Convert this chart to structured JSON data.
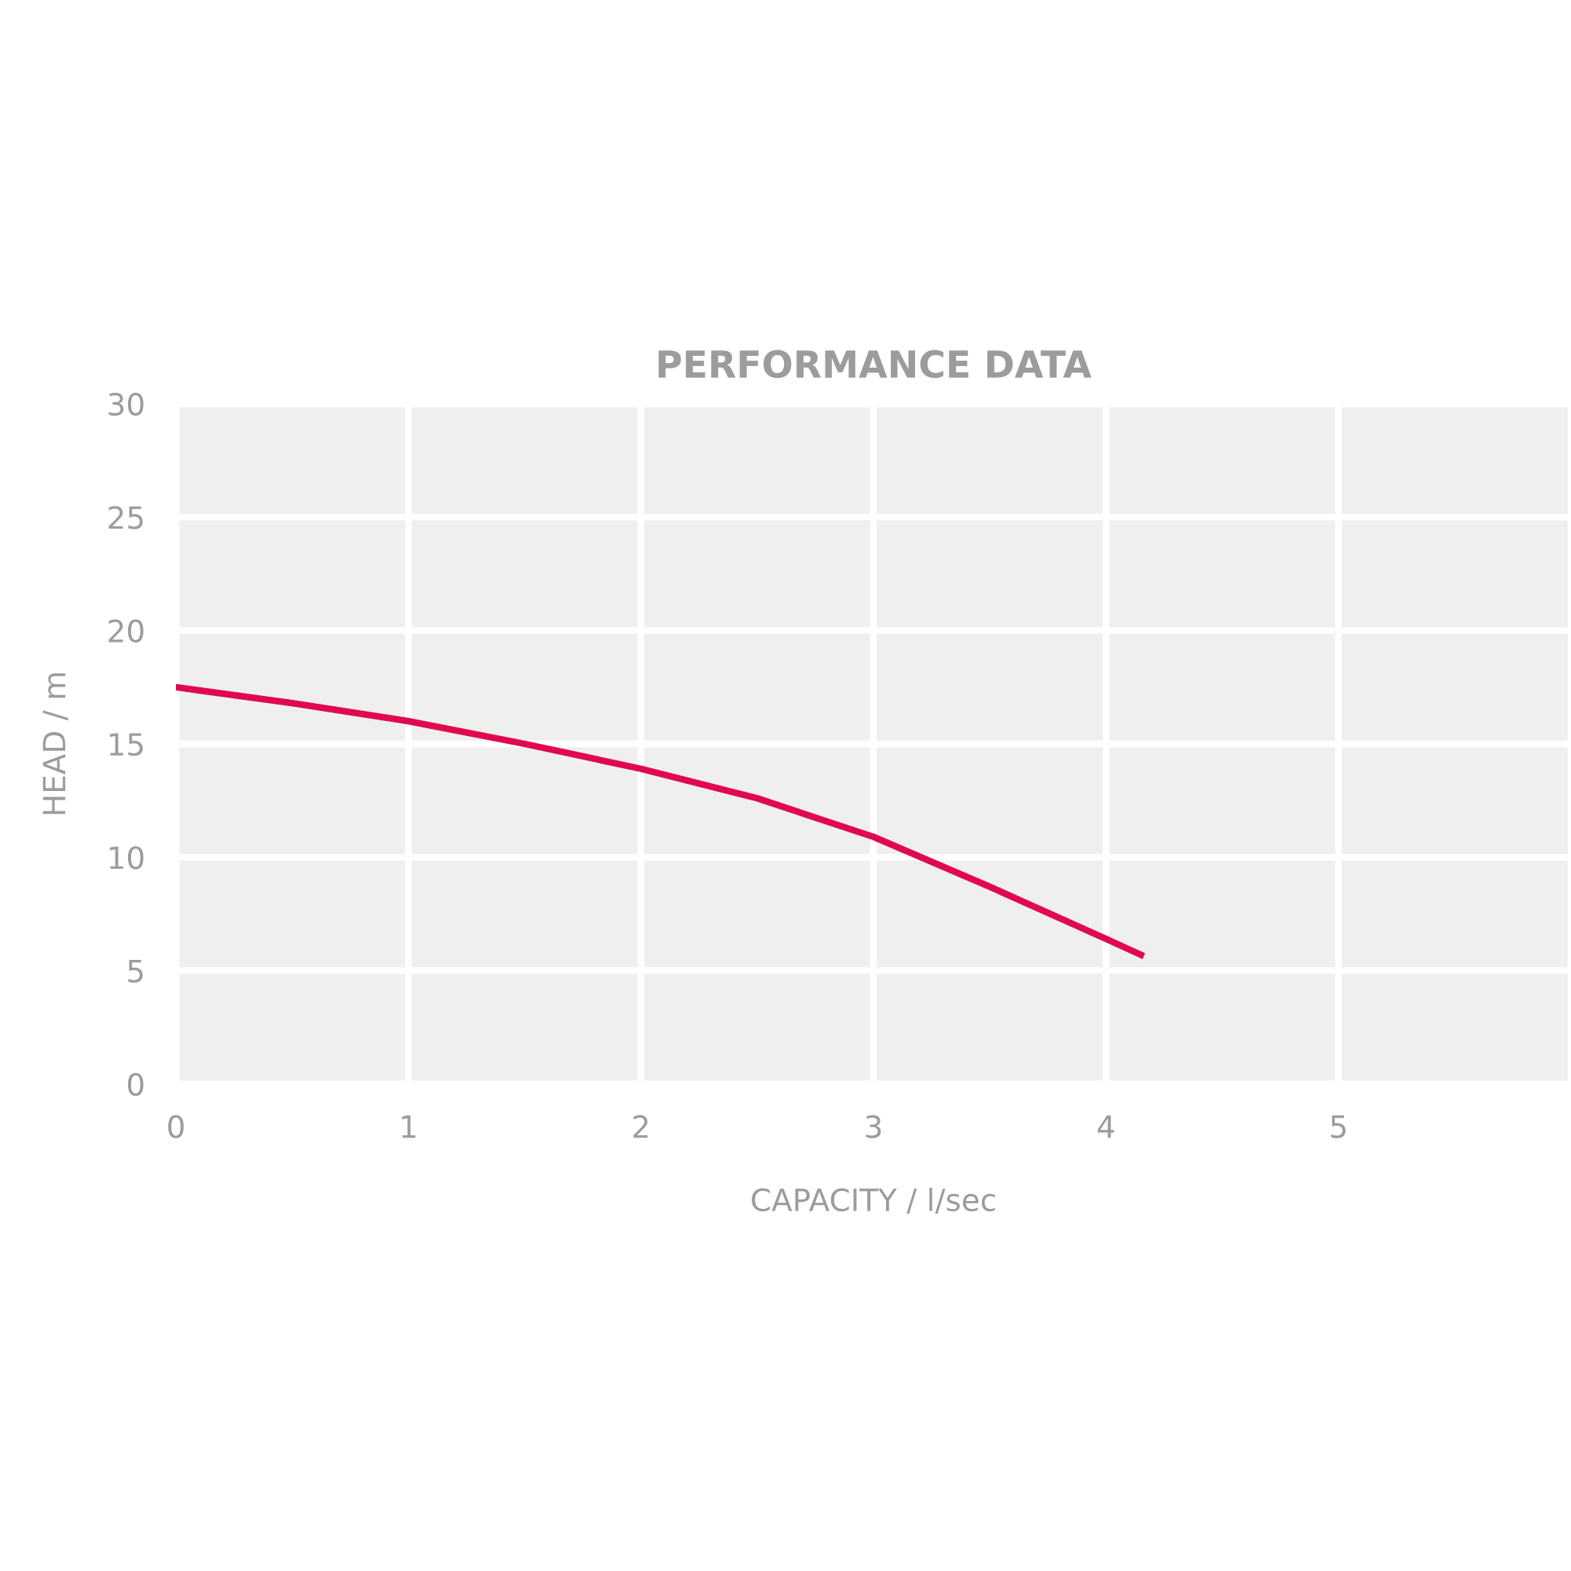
{
  "chart_data": {
    "type": "line",
    "title": "PERFORMANCE DATA",
    "xlabel": "CAPACITY / l/sec",
    "ylabel": "HEAD / m",
    "x": [
      0,
      0.5,
      1,
      1.5,
      2,
      2.5,
      3,
      3.5,
      4,
      4.15
    ],
    "series": [
      {
        "color": "#e0084f",
        "values": [
          17.5,
          16.8,
          16.0,
          15.0,
          13.9,
          12.6,
          10.9,
          8.7,
          6.4,
          5.7
        ]
      }
    ],
    "xlim": [
      0,
      6
    ],
    "xticks": [
      0,
      1,
      2,
      3,
      4,
      5
    ],
    "ylim": [
      0,
      30
    ],
    "yticks": [
      0,
      5,
      10,
      15,
      20,
      25,
      30
    ],
    "grid": true,
    "marker": "none",
    "line_style": "solid",
    "legend": false
  }
}
